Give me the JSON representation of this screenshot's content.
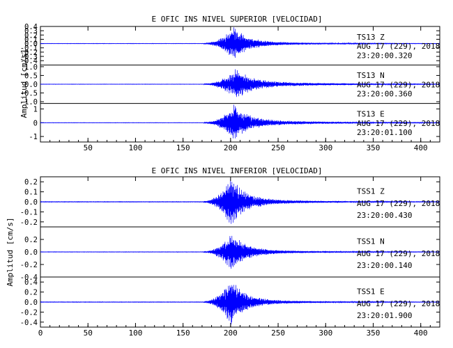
{
  "chart_data": [
    {
      "type": "line",
      "title": "E OFIC INS NIVEL SUPERIOR [VELOCIDAD]",
      "ylabel": "Amplitud [cm/s]",
      "xlim": [
        0,
        420
      ],
      "x_ticks": [
        50,
        100,
        150,
        200,
        250,
        300,
        350,
        400
      ],
      "trace_color": "#0000ff",
      "panels": [
        {
          "name": "TS13 Z",
          "station": "TS13",
          "component": "Z",
          "date": "AUG 17 (229), 2018",
          "time": "23:20:00.320",
          "ylim": [
            -0.5,
            0.4
          ],
          "y_ticks": [
            "0.4",
            "0.3",
            "0.2",
            "0.1",
            "0.0",
            "-0.1",
            "-0.2",
            "-0.3",
            "-0.4"
          ],
          "y_tick_values": [
            0.4,
            0.3,
            0.2,
            0.1,
            0.0,
            -0.1,
            -0.2,
            -0.3,
            -0.4
          ],
          "onset_s": 172,
          "peak_s": 203,
          "peak_amplitude": 0.38,
          "coda_amplitude": 0.05
        },
        {
          "name": "TS13 N",
          "station": "TS13",
          "component": "N",
          "date": "AUG 17 (229), 2018",
          "time": "23:20:00.360",
          "ylim": [
            -1.1,
            1.1
          ],
          "y_ticks": [
            "1.0",
            "0.5",
            "0.0",
            "-0.5",
            "-1.0"
          ],
          "y_tick_values": [
            1.0,
            0.5,
            0.0,
            -0.5,
            -1.0
          ],
          "onset_s": 172,
          "peak_s": 205,
          "peak_amplitude": 0.85,
          "coda_amplitude": 0.2
        },
        {
          "name": "TS13 E",
          "station": "TS13",
          "component": "E",
          "date": "AUG 17 (229), 2018",
          "time": "23:20:01.100",
          "ylim": [
            -1.4,
            1.4
          ],
          "y_ticks": [
            "1",
            "0",
            "-1"
          ],
          "y_tick_values": [
            1,
            0,
            -1
          ],
          "onset_s": 172,
          "peak_s": 203,
          "peak_amplitude": 1.2,
          "coda_amplitude": 0.25
        }
      ]
    },
    {
      "type": "line",
      "title": "E OFIC INS NIVEL INFERIOR [VELOCIDAD]",
      "ylabel": "Amplitud [cm/s]",
      "xlim": [
        0,
        420
      ],
      "x_ticks": [
        0,
        50,
        100,
        150,
        200,
        250,
        300,
        350,
        400
      ],
      "trace_color": "#0000ff",
      "panels": [
        {
          "name": "TSS1 Z",
          "station": "TSS1",
          "component": "Z",
          "date": "AUG 17 (229), 2018",
          "time": "23:20:00.430",
          "ylim": [
            -0.25,
            0.25
          ],
          "y_ticks": [
            "0.2",
            "0.1",
            "0.0",
            "-0.1",
            "-0.2"
          ],
          "y_tick_values": [
            0.2,
            0.1,
            0.0,
            -0.1,
            -0.2
          ],
          "onset_s": 172,
          "peak_s": 200,
          "peak_amplitude": 0.24,
          "coda_amplitude": 0.03
        },
        {
          "name": "TSS1 N",
          "station": "TSS1",
          "component": "N",
          "date": "AUG 17 (229), 2018",
          "time": "23:20:00.140",
          "ylim": [
            -0.4,
            0.4
          ],
          "y_ticks": [
            "0.2",
            "0.0",
            "-0.2",
            "-0.4"
          ],
          "y_tick_values": [
            0.2,
            0.0,
            -0.2,
            -0.4
          ],
          "onset_s": 172,
          "peak_s": 201,
          "peak_amplitude": 0.3,
          "coda_amplitude": 0.04
        },
        {
          "name": "TSS1 E",
          "station": "TSS1",
          "component": "E",
          "date": "AUG 17 (229), 2018",
          "time": "23:20:01.900",
          "ylim": [
            -0.5,
            0.5
          ],
          "y_ticks": [
            "0.4",
            "0.2",
            "0.0",
            "-0.2",
            "-0.4"
          ],
          "y_tick_values": [
            0.4,
            0.2,
            0.0,
            -0.2,
            -0.4
          ],
          "onset_s": 172,
          "peak_s": 200,
          "peak_amplitude": 0.45,
          "coda_amplitude": 0.05
        }
      ]
    }
  ]
}
